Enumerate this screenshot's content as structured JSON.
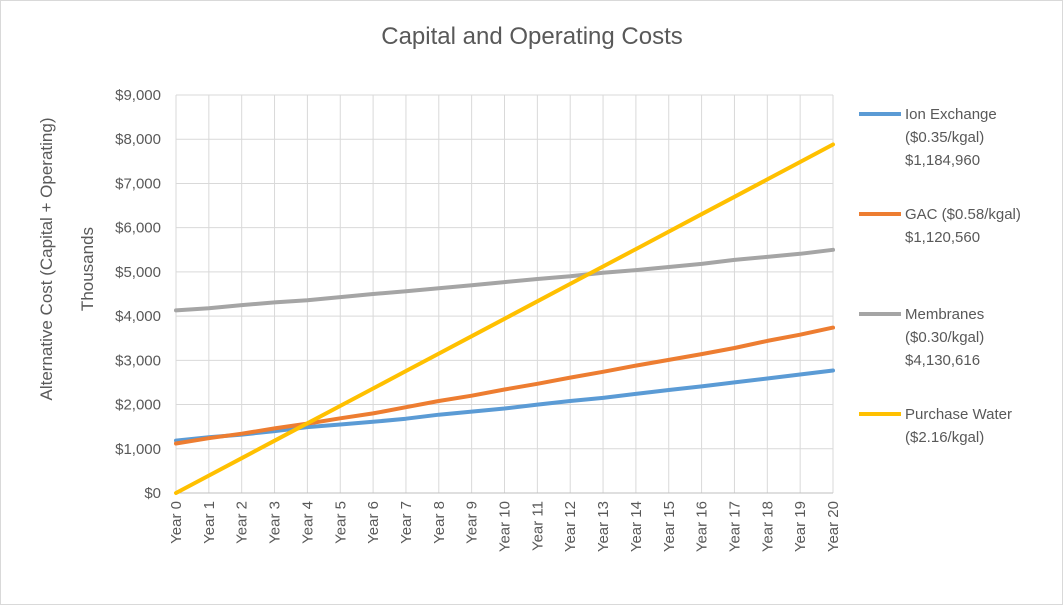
{
  "chart_data": {
    "type": "line",
    "title": "Capital and Operating Costs",
    "ylabel": "Alternative Cost (Capital + Operating)",
    "yunit_label": "Thousands",
    "xlabel": "",
    "ylim": [
      0,
      9000
    ],
    "yticks": [
      0,
      1000,
      2000,
      3000,
      4000,
      5000,
      6000,
      7000,
      8000,
      9000
    ],
    "ytick_labels": [
      "$0",
      "$1,000",
      "$2,000",
      "$3,000",
      "$4,000",
      "$5,000",
      "$6,000",
      "$7,000",
      "$8,000",
      "$9,000"
    ],
    "categories": [
      "Year 0",
      "Year 1",
      "Year 2",
      "Year 3",
      "Year 4",
      "Year 5",
      "Year 6",
      "Year 7",
      "Year 8",
      "Year 9",
      "Year 10",
      "Year 11",
      "Year 12",
      "Year 13",
      "Year 14",
      "Year 15",
      "Year 16",
      "Year 17",
      "Year 18",
      "Year 19",
      "Year 20"
    ],
    "grid": true,
    "legend_position": "right",
    "series": [
      {
        "name": "Ion Exchange",
        "legend_lines": [
          "Ion Exchange",
          "($0.35/kgal)",
          "$1,184,960"
        ],
        "color": "#5b9bd5",
        "values": [
          1185,
          1260,
          1320,
          1400,
          1490,
          1550,
          1610,
          1680,
          1770,
          1840,
          1910,
          2000,
          2080,
          2150,
          2240,
          2330,
          2410,
          2500,
          2590,
          2680,
          2770
        ]
      },
      {
        "name": "GAC",
        "legend_lines": [
          "GAC ($0.58/kgal)",
          "$1,120,560"
        ],
        "color": "#ed7d31",
        "values": [
          1120,
          1240,
          1340,
          1460,
          1570,
          1690,
          1800,
          1940,
          2080,
          2200,
          2340,
          2470,
          2610,
          2740,
          2880,
          3010,
          3140,
          3280,
          3440,
          3580,
          3740
        ]
      },
      {
        "name": "Membranes",
        "legend_lines": [
          "Membranes",
          "($0.30/kgal)",
          "$4,130,616"
        ],
        "color": "#a5a5a5",
        "values": [
          4130,
          4180,
          4250,
          4310,
          4360,
          4430,
          4500,
          4560,
          4630,
          4700,
          4770,
          4840,
          4900,
          4980,
          5040,
          5110,
          5180,
          5270,
          5340,
          5410,
          5500
        ]
      },
      {
        "name": "Purchase Water",
        "legend_lines": [
          "Purchase Water",
          "($2.16/kgal)"
        ],
        "color": "#ffc000",
        "values": [
          0,
          394,
          788,
          1182,
          1576,
          1970,
          2364,
          2758,
          3152,
          3546,
          3940,
          4334,
          4728,
          5122,
          5516,
          5910,
          6304,
          6698,
          7092,
          7486,
          7880
        ]
      }
    ]
  }
}
